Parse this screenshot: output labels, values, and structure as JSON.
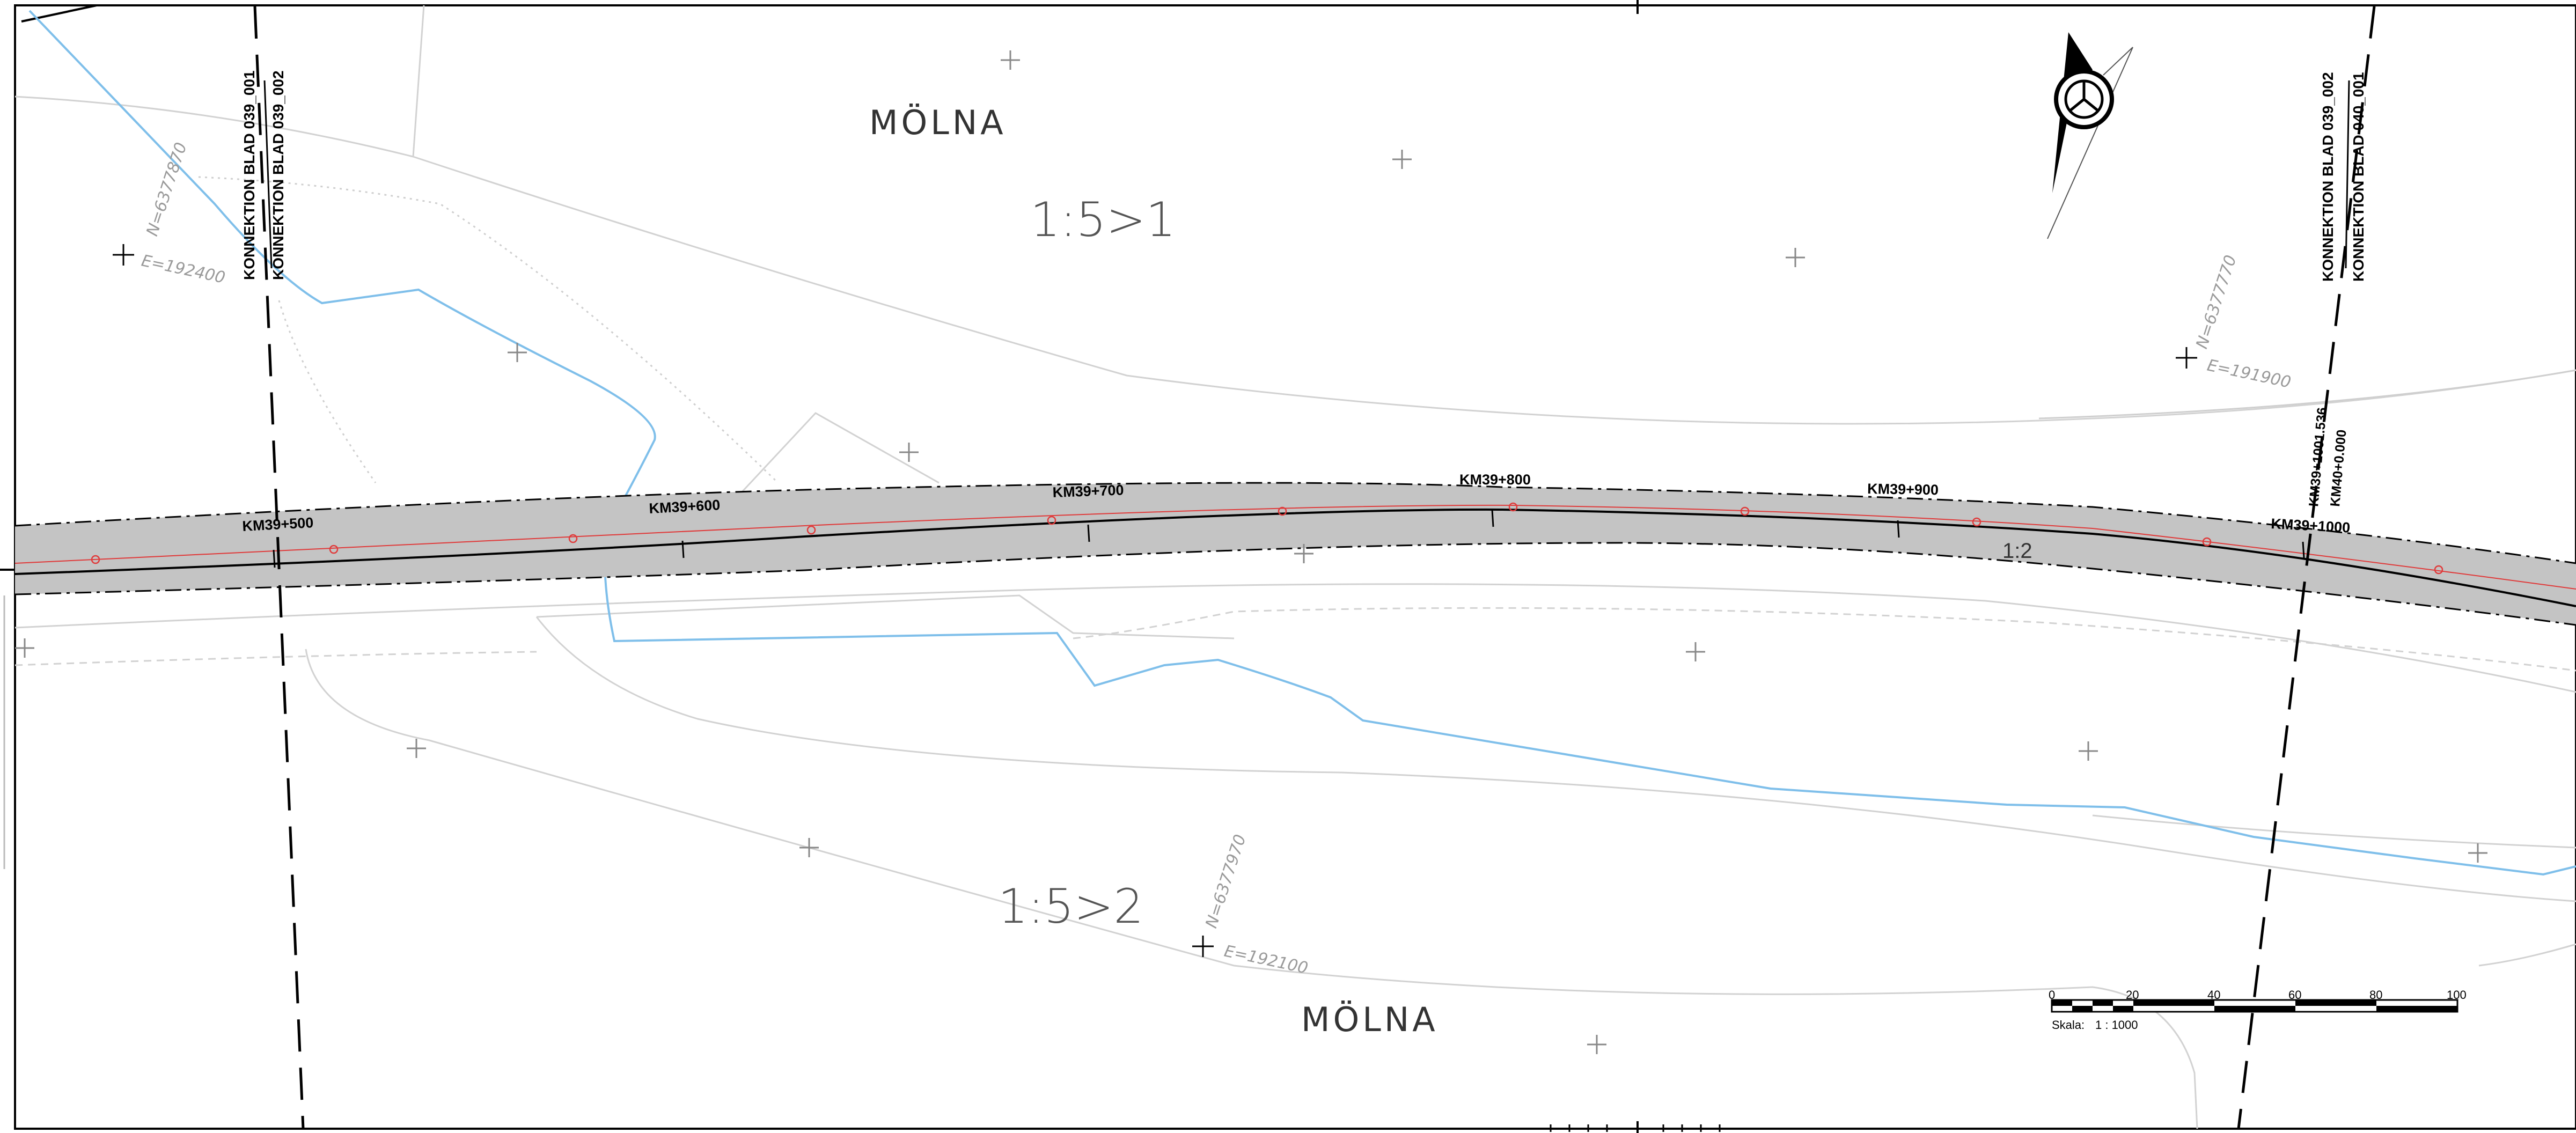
{
  "places": {
    "north": "MÖLNA",
    "south": "MÖLNA"
  },
  "zones": {
    "north": "1:5>1",
    "south": "1:5>2"
  },
  "road_label": "1:2",
  "coordinates": {
    "west": {
      "n": "N=6377870",
      "e": "E=192400"
    },
    "east": {
      "n": "N=6377770",
      "e": "E=191900"
    },
    "south": {
      "n": "N=6377970",
      "e": "E=192100"
    }
  },
  "connections": {
    "west_a": "KONNEKTION BLAD 039_001",
    "west_b": "KONNEKTION BLAD 039_002",
    "east_a": "KONNEKTION BLAD 039_002",
    "east_b": "KONNEKTION BLAD 040_001"
  },
  "chainage": {
    "km500": "KM39+500",
    "km600": "KM39+600",
    "km700": "KM39+700",
    "km800": "KM39+800",
    "km900": "KM39+900",
    "km1000": "KM39+1000",
    "km_end": "KM39+1001.536",
    "km40": "KM40+0.000"
  },
  "scale_bar": {
    "ticks": [
      "0",
      "20",
      "40",
      "60",
      "80",
      "100"
    ],
    "label": "Skala:",
    "ratio": "1 : 1000"
  },
  "north_arrow_icon": "north-arrow-icon",
  "colors": {
    "road_fill": "#c4c4c4",
    "water": "#7fbfea",
    "centerline_red": "#e03a3a",
    "terrain": "#cfcfcf"
  }
}
